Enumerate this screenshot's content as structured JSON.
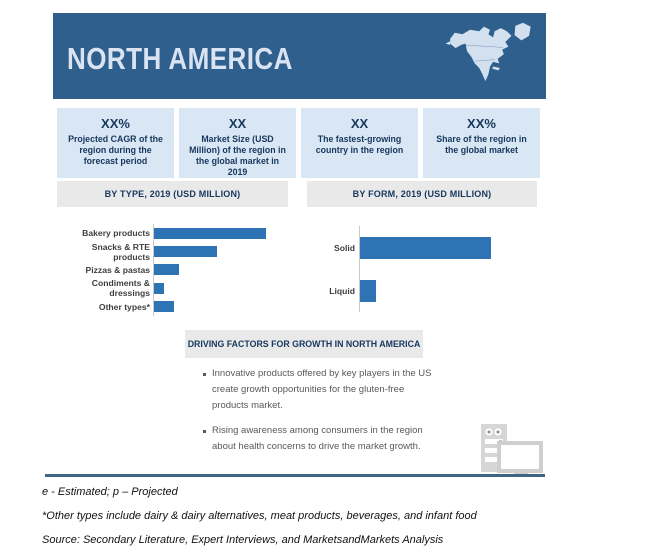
{
  "banner": {
    "title": "NORTH AMERICA"
  },
  "stats": [
    {
      "value": "XX%",
      "label": "Projected CAGR of the region during the forecast period"
    },
    {
      "value": "XX",
      "label": "Market Size (USD Million) of the region in the global market in 2019"
    },
    {
      "value": "XX",
      "label": "The fastest-growing country in the region"
    },
    {
      "value": "XX%",
      "label": "Share of the region in the global market"
    }
  ],
  "chart_data": [
    {
      "type": "bar",
      "orientation": "horizontal",
      "title": "BY TYPE, 2019 (USD MILLION)",
      "categories": [
        "Bakery products",
        "Snacks & RTE products",
        "Pizzas & pastas",
        "Condiments & dressings",
        "Other types*"
      ],
      "values": [
        100,
        56,
        22,
        9,
        18
      ],
      "units": "relative bar length, % of max (no numeric axis labels shown)",
      "value_labels_shown": false,
      "axis_values_shown": false,
      "xlabel": "",
      "ylabel": "",
      "grid": false,
      "legend": false,
      "bar_color": "#2E74B5"
    },
    {
      "type": "bar",
      "orientation": "horizontal",
      "title": "BY FORM, 2019 (USD MILLION)",
      "categories": [
        "Solid",
        "Liquid"
      ],
      "values": [
        100,
        12
      ],
      "units": "relative bar length, % of max (no numeric axis labels shown)",
      "value_labels_shown": false,
      "axis_values_shown": false,
      "xlabel": "",
      "ylabel": "",
      "grid": false,
      "legend": false,
      "bar_color": "#2E74B5"
    }
  ],
  "driving_factors": {
    "title": "DRIVING FACTORS FOR GROWTH IN NORTH AMERICA",
    "bullets": [
      "Innovative products offered by key players in the US create growth opportunities for the gluten-free products market.",
      "Rising awareness among consumers in the region about health concerns to drive the market growth."
    ]
  },
  "footnotes": [
    "e - Estimated; p – Projected",
    "*Other types include dairy & dairy alternatives, meat products, beverages, and infant food",
    "Source: Secondary Literature, Expert Interviews, and MarketsandMarkets Analysis"
  ],
  "icons": {
    "banner_map": "north-america-map-icon",
    "bottom_right": "computer-report-icon"
  },
  "colors": {
    "banner": "#2F5F8C",
    "statbg": "#D9E6F3",
    "navy": "#17375E",
    "headerbg": "#E9E9E9",
    "bar": "#2E74B5",
    "divider": "#3E6583",
    "map_fill": "#D3E0F0",
    "icon_gray": "#D6D6D6"
  }
}
